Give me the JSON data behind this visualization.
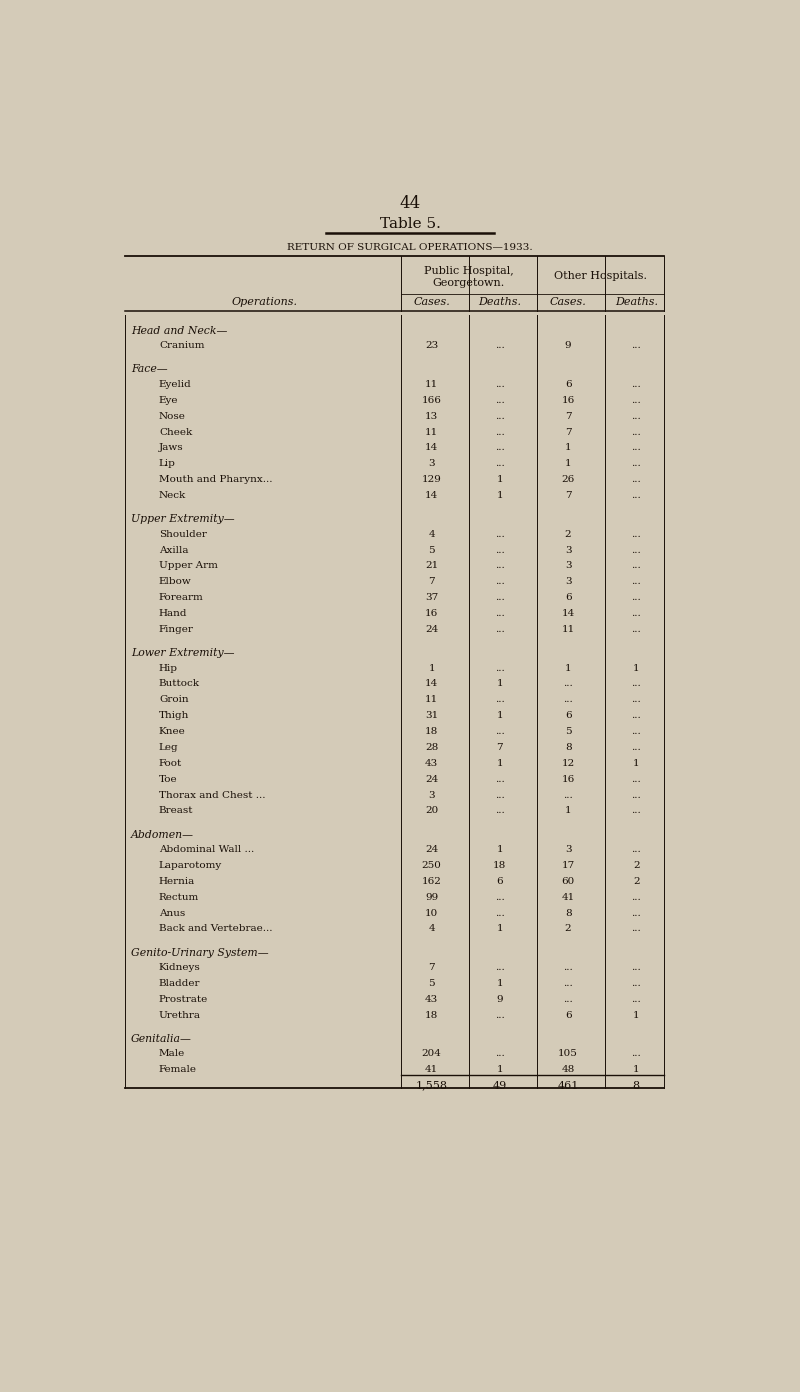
{
  "page_number": "44",
  "title": "Table 5.",
  "subtitle": "RETURN OF SURGICAL OPERATIONS—1933.",
  "sections": [
    {
      "header": "Head and Neck—",
      "rows": [
        [
          "Cranium",
          "23",
          "...",
          "9",
          "..."
        ]
      ]
    },
    {
      "header": "Face—",
      "rows": [
        [
          "Eyelid",
          "11",
          "...",
          "6",
          "..."
        ],
        [
          "Eye",
          "166",
          "...",
          "16",
          "..."
        ],
        [
          "Nose",
          "13",
          "...",
          "7",
          "..."
        ],
        [
          "Cheek",
          "11",
          "...",
          "7",
          "..."
        ],
        [
          "Jaws",
          "14",
          "...",
          "1",
          "..."
        ],
        [
          "Lip",
          "3",
          "...",
          "1",
          "..."
        ],
        [
          "Mouth and Pharynx...",
          "129",
          "1",
          "26",
          "..."
        ],
        [
          "Neck",
          "14",
          "1",
          "7",
          "..."
        ]
      ]
    },
    {
      "header": "Upper Extremity—",
      "rows": [
        [
          "Shoulder",
          "4",
          "...",
          "2",
          "..."
        ],
        [
          "Axilla",
          "5",
          "...",
          "3",
          "..."
        ],
        [
          "Upper Arm",
          "21",
          "...",
          "3",
          "..."
        ],
        [
          "Elbow",
          "7",
          "...",
          "3",
          "..."
        ],
        [
          "Forearm",
          "37",
          "...",
          "6",
          "..."
        ],
        [
          "Hand",
          "16",
          "...",
          "14",
          "..."
        ],
        [
          "Finger",
          "24",
          "...",
          "11",
          "..."
        ]
      ]
    },
    {
      "header": "Lower Extremity—",
      "rows": [
        [
          "Hip",
          "1",
          "...",
          "1",
          "1"
        ],
        [
          "Buttock",
          "14",
          "1",
          "...",
          "..."
        ],
        [
          "Groin",
          "11",
          "...",
          "...",
          "..."
        ],
        [
          "Thigh",
          "31",
          "1",
          "6",
          "..."
        ],
        [
          "Knee",
          "18",
          "...",
          "5",
          "..."
        ],
        [
          "Leg",
          "28",
          "7",
          "8",
          "..."
        ],
        [
          "Foot",
          "43",
          "1",
          "12",
          "1"
        ],
        [
          "Toe",
          "24",
          "...",
          "16",
          "..."
        ],
        [
          "Thorax and Chest ...",
          "3",
          "...",
          "...",
          "..."
        ],
        [
          "Breast",
          "20",
          "...",
          "1",
          "..."
        ]
      ]
    },
    {
      "header": "Abdomen—",
      "rows": [
        [
          "Abdominal Wall ...",
          "24",
          "1",
          "3",
          "..."
        ],
        [
          "Laparotomy",
          "250",
          "18",
          "17",
          "2"
        ],
        [
          "Hernia",
          "162",
          "6",
          "60",
          "2"
        ],
        [
          "Rectum",
          "99",
          "...",
          "41",
          "..."
        ],
        [
          "Anus",
          "10",
          "...",
          "8",
          "..."
        ],
        [
          "Back and Vertebrae...",
          "4",
          "1",
          "2",
          "..."
        ]
      ]
    },
    {
      "header": "Genito-Urinary System—",
      "rows": [
        [
          "Kidneys",
          "7",
          "...",
          "...",
          "..."
        ],
        [
          "Bladder",
          "5",
          "1",
          "...",
          "..."
        ],
        [
          "Prostrate",
          "43",
          "9",
          "...",
          "..."
        ],
        [
          "Urethra",
          "18",
          "...",
          "6",
          "1"
        ]
      ]
    },
    {
      "header": "Genitalia—",
      "rows": [
        [
          "Male",
          "204",
          "...",
          "105",
          "..."
        ],
        [
          "Female",
          "41",
          "1",
          "48",
          "1"
        ]
      ]
    }
  ],
  "totals": [
    "",
    "1,558",
    "49",
    "461",
    "8"
  ],
  "bg_color": "#d4cbb8",
  "text_color": "#1a1008",
  "line_color": "#1a1008"
}
